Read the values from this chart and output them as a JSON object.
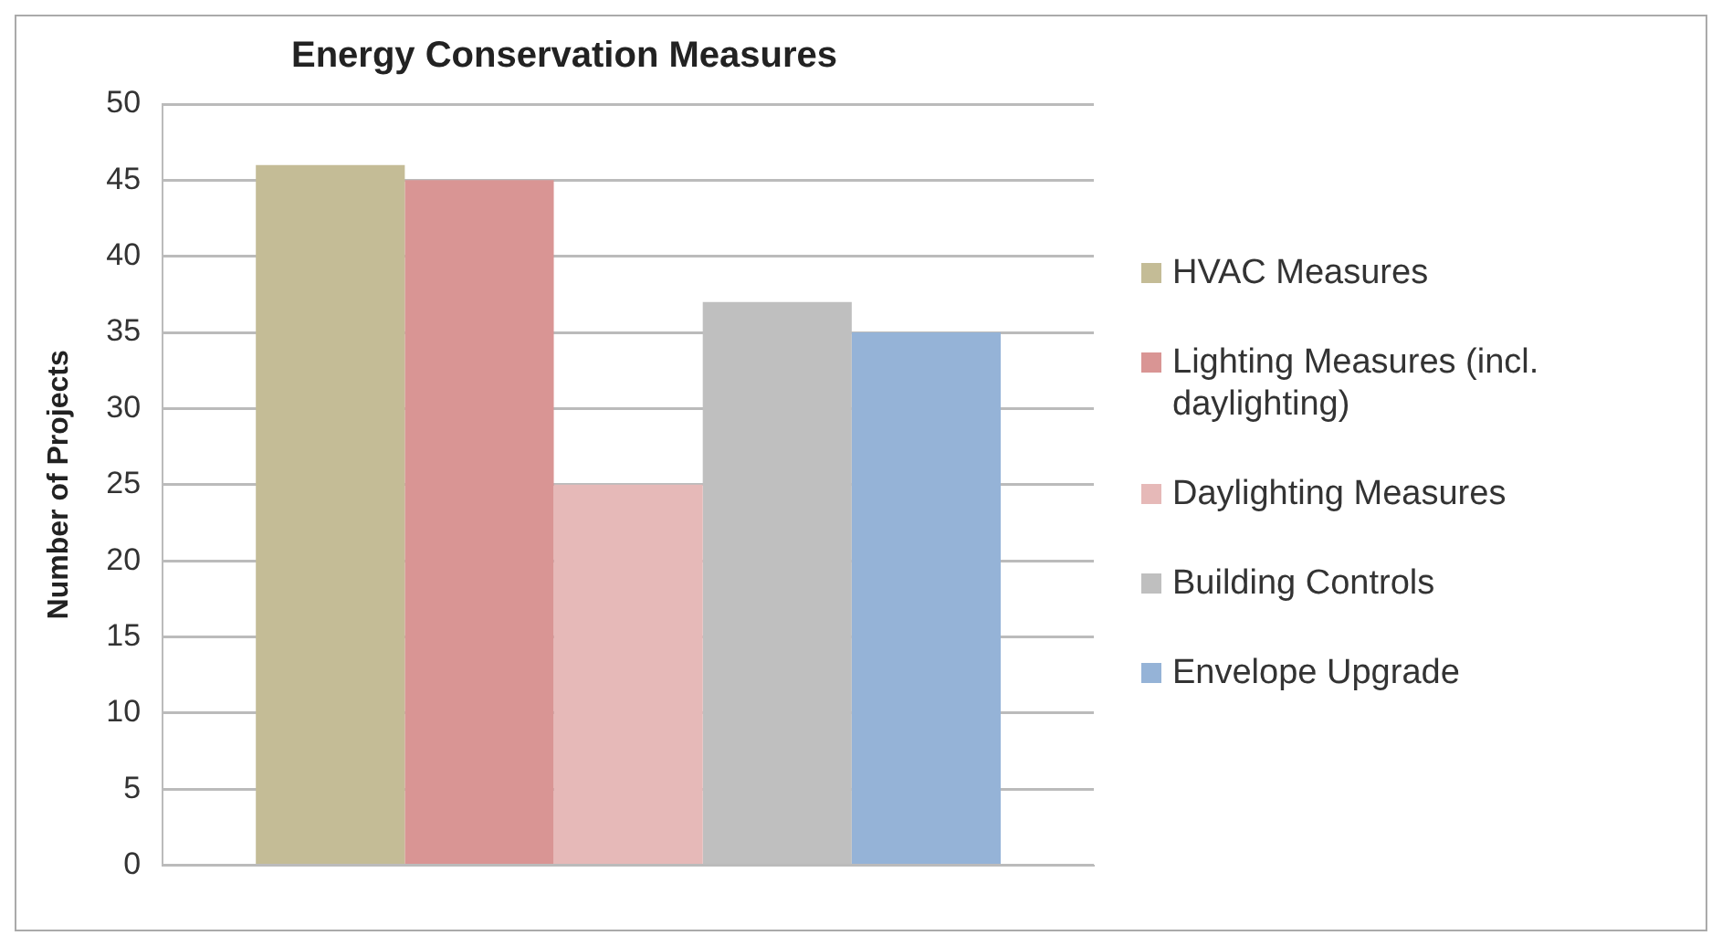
{
  "chart_data": {
    "type": "bar",
    "title": "Energy Conservation Measures",
    "ylabel": "Number of Projects",
    "categories": [
      null
    ],
    "series": [
      {
        "name": "HVAC Measures",
        "color": "#c4bc96",
        "values": [
          46
        ]
      },
      {
        "name": "Lighting Measures (incl. daylighting)",
        "color": "#d99594",
        "values": [
          45
        ]
      },
      {
        "name": "Daylighting Measures",
        "color": "#e6b9b8",
        "values": [
          25
        ]
      },
      {
        "name": "Building Controls",
        "color": "#bfbfbf",
        "values": [
          37
        ]
      },
      {
        "name": "Envelope Upgrade",
        "color": "#95b3d7",
        "values": [
          35
        ]
      }
    ],
    "ylim": [
      0,
      50
    ],
    "yticks": [
      0,
      5,
      10,
      15,
      20,
      25,
      30,
      35,
      40,
      45,
      50
    ],
    "grid": "y",
    "legend": "right"
  }
}
